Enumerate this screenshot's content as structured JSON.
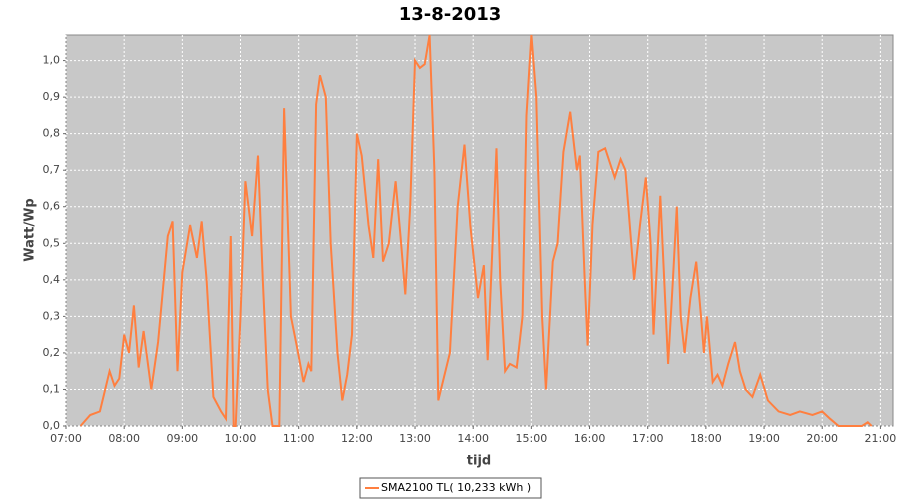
{
  "chart_data": {
    "type": "line",
    "title": "13-8-2013",
    "xlabel": "tijd",
    "ylabel": "Watt/Wp",
    "x": [
      "07:15",
      "07:25",
      "07:35",
      "07:45",
      "07:50",
      "07:55",
      "08:00",
      "08:05",
      "08:10",
      "08:15",
      "08:20",
      "08:28",
      "08:35",
      "08:45",
      "08:50",
      "08:55",
      "09:00",
      "09:08",
      "09:15",
      "09:20",
      "09:25",
      "09:32",
      "09:40",
      "09:45",
      "09:50",
      "09:53",
      "09:55",
      "10:00",
      "10:05",
      "10:12",
      "10:18",
      "10:23",
      "10:28",
      "10:33",
      "10:40",
      "10:45",
      "10:52",
      "10:58",
      "11:05",
      "11:10",
      "11:13",
      "11:18",
      "11:22",
      "11:28",
      "11:33",
      "11:40",
      "11:45",
      "11:50",
      "11:55",
      "12:00",
      "12:05",
      "12:12",
      "12:17",
      "12:22",
      "12:27",
      "12:33",
      "12:40",
      "12:45",
      "12:50",
      "12:55",
      "13:00",
      "13:05",
      "13:10",
      "13:15",
      "13:20",
      "13:24",
      "13:36",
      "13:44",
      "13:51",
      "13:57",
      "14:05",
      "14:11",
      "14:15",
      "14:20",
      "14:24",
      "14:28",
      "14:33",
      "14:38",
      "14:45",
      "14:51",
      "14:55",
      "15:00",
      "15:05",
      "15:11",
      "15:15",
      "15:22",
      "15:27",
      "15:33",
      "15:40",
      "15:47",
      "15:50",
      "15:55",
      "15:58",
      "16:03",
      "16:09",
      "16:16",
      "16:26",
      "16:32",
      "16:37",
      "16:46",
      "16:52",
      "16:58",
      "17:03",
      "17:06",
      "17:13",
      "17:17",
      "17:21",
      "17:26",
      "17:30",
      "17:34",
      "17:38",
      "17:44",
      "17:50",
      "17:55",
      "17:58",
      "18:01",
      "18:07",
      "18:12",
      "18:17",
      "18:23",
      "18:30",
      "18:35",
      "18:41",
      "18:48",
      "18:56",
      "19:04",
      "19:15",
      "19:27",
      "19:37",
      "19:50",
      "20:00",
      "20:08",
      "20:17",
      "20:41",
      "20:47",
      "20:51"
    ],
    "series": [
      {
        "name": "SMA2100 TL( 10,233 kWh )",
        "color": "#ff7f3f",
        "values": [
          0.0,
          0.03,
          0.04,
          0.15,
          0.11,
          0.13,
          0.25,
          0.2,
          0.33,
          0.16,
          0.26,
          0.1,
          0.23,
          0.52,
          0.56,
          0.15,
          0.42,
          0.55,
          0.46,
          0.56,
          0.4,
          0.08,
          0.04,
          0.02,
          0.52,
          0.0,
          0.0,
          0.3,
          0.67,
          0.52,
          0.74,
          0.4,
          0.1,
          0.0,
          0.0,
          0.87,
          0.3,
          0.22,
          0.12,
          0.17,
          0.15,
          0.88,
          0.96,
          0.9,
          0.5,
          0.2,
          0.07,
          0.14,
          0.25,
          0.8,
          0.74,
          0.55,
          0.46,
          0.73,
          0.45,
          0.5,
          0.67,
          0.52,
          0.36,
          0.6,
          1.0,
          0.98,
          0.99,
          1.07,
          0.7,
          0.07,
          0.2,
          0.6,
          0.77,
          0.55,
          0.35,
          0.44,
          0.18,
          0.5,
          0.76,
          0.4,
          0.15,
          0.17,
          0.16,
          0.3,
          0.85,
          1.07,
          0.9,
          0.3,
          0.1,
          0.45,
          0.5,
          0.75,
          0.86,
          0.7,
          0.74,
          0.4,
          0.22,
          0.55,
          0.75,
          0.76,
          0.68,
          0.73,
          0.7,
          0.4,
          0.55,
          0.68,
          0.5,
          0.25,
          0.63,
          0.4,
          0.17,
          0.4,
          0.6,
          0.3,
          0.2,
          0.35,
          0.45,
          0.3,
          0.2,
          0.3,
          0.12,
          0.14,
          0.11,
          0.17,
          0.23,
          0.15,
          0.1,
          0.08,
          0.14,
          0.07,
          0.04,
          0.03,
          0.04,
          0.03,
          0.04,
          0.02,
          0.0,
          0.0,
          0.01,
          0.0
        ]
      }
    ],
    "xlim": [
      "07:00",
      "21:13"
    ],
    "xticks": [
      "07:00",
      "08:00",
      "09:00",
      "10:00",
      "11:00",
      "12:00",
      "13:00",
      "14:00",
      "15:00",
      "16:00",
      "17:00",
      "18:00",
      "19:00",
      "20:00",
      "21:00"
    ],
    "ylim": [
      0,
      1.07
    ],
    "yticks": [
      {
        "value": 0,
        "label": "0,0"
      },
      {
        "value": 0.1,
        "label": "0,1"
      },
      {
        "value": 0.2,
        "label": "0,2"
      },
      {
        "value": 0.3,
        "label": "0,3"
      },
      {
        "value": 0.4,
        "label": "0,4"
      },
      {
        "value": 0.5,
        "label": "0,5"
      },
      {
        "value": 0.6,
        "label": "0,6"
      },
      {
        "value": 0.7,
        "label": "0,7"
      },
      {
        "value": 0.8,
        "label": "0,8"
      },
      {
        "value": 0.9,
        "label": "0,9"
      },
      {
        "value": 1.0,
        "label": "1,0"
      }
    ],
    "grid": true
  }
}
